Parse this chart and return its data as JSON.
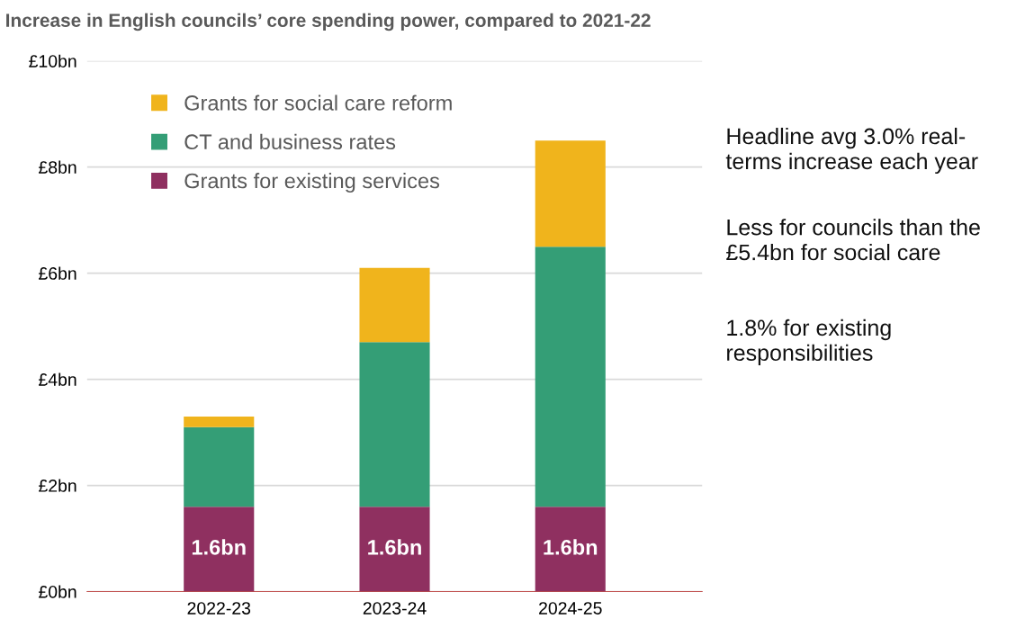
{
  "chart_data": {
    "type": "bar",
    "title": "Increase in English councils’ core spending power, compared to 2021-22",
    "categories": [
      "2022-23",
      "2023-24",
      "2024-25"
    ],
    "stacked": true,
    "series": [
      {
        "name": "Grants for existing services",
        "color": "#8f3060",
        "values": [
          1.6,
          1.6,
          1.6
        ],
        "value_labels": [
          "1.6bn",
          "1.6bn",
          "1.6bn"
        ]
      },
      {
        "name": "CT and business rates",
        "color": "#349e76",
        "values": [
          1.5,
          3.1,
          4.9
        ]
      },
      {
        "name": "Grants for social care reform",
        "color": "#f0b41c",
        "values": [
          0.2,
          1.4,
          2.0
        ]
      }
    ],
    "ylim": [
      0,
      10
    ],
    "yticks": [
      {
        "value": 0,
        "label": "£0bn"
      },
      {
        "value": 2,
        "label": "£2bn"
      },
      {
        "value": 4,
        "label": "£4bn"
      },
      {
        "value": 6,
        "label": "£6bn"
      },
      {
        "value": 8,
        "label": "£8bn"
      },
      {
        "value": 10,
        "label": "£10bn"
      }
    ],
    "grid": "y",
    "legend": "top left",
    "annotations": [
      "Headline avg 3.0% real-\nterms increase each year",
      "Less for councils than the\n£5.4bn for social care",
      "1.8% for existing\nresponsibilities"
    ]
  }
}
